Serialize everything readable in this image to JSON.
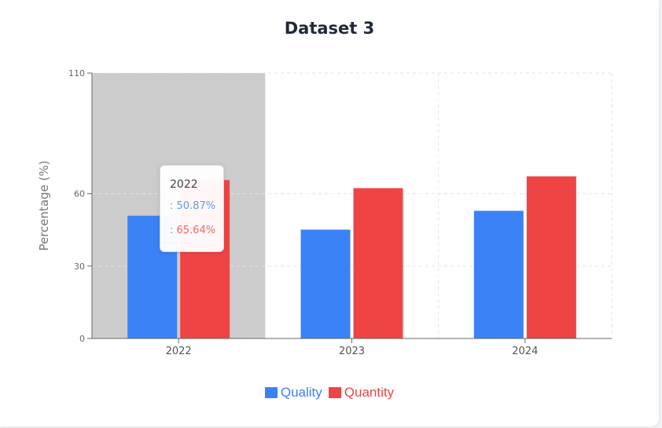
{
  "chart_data": {
    "type": "bar",
    "title": "Dataset 3",
    "xlabel": "",
    "ylabel": "Percentage (%)",
    "ylim": [
      0,
      110
    ],
    "yticks": [
      0,
      30,
      60,
      110
    ],
    "categories": [
      "2022",
      "2023",
      "2024"
    ],
    "series": [
      {
        "name": "Quality",
        "color": "#3b82f6",
        "values": [
          50.87,
          45.1,
          52.9
        ]
      },
      {
        "name": "Quantity",
        "color": "#ef4444",
        "values": [
          65.64,
          62.3,
          67.2
        ]
      }
    ],
    "grid": true,
    "legend_position": "bottom",
    "highlighted_category": "2022",
    "tooltip": {
      "title": "2022",
      "rows": [
        {
          "text": ": 50.87%",
          "color": "#5b9bf7"
        },
        {
          "text": ": 65.64%",
          "color": "#f06767"
        }
      ]
    }
  }
}
